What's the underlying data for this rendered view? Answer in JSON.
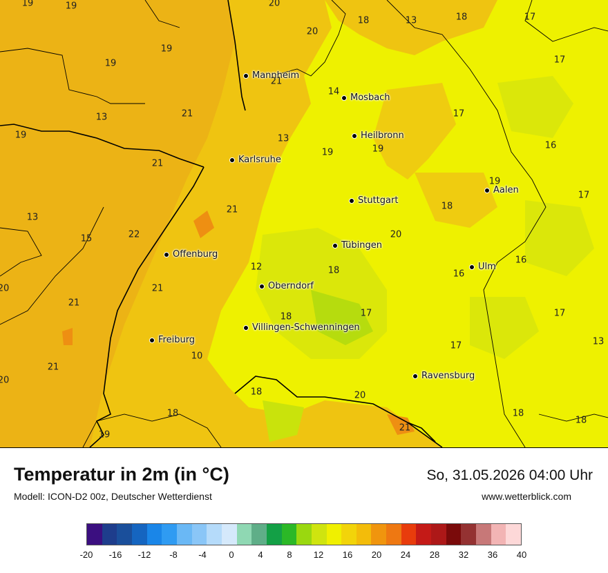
{
  "title": "Temperatur in 2m (in °C)",
  "model": "Modell: ICON-D2 00z, Deutscher Wetterdienst",
  "datetime": "So, 31.05.2026 04:00 Uhr",
  "website": "www.wetterblick.com",
  "cities": [
    {
      "name": "Mannheim",
      "id": "mannheim"
    },
    {
      "name": "Mosbach",
      "id": "mosbach"
    },
    {
      "name": "Heilbronn",
      "id": "heilbronn"
    },
    {
      "name": "Karlsruhe",
      "id": "karlsruhe"
    },
    {
      "name": "Stuttgart",
      "id": "stuttgart"
    },
    {
      "name": "Aalen",
      "id": "aalen"
    },
    {
      "name": "Tübingen",
      "id": "tuebingen"
    },
    {
      "name": "Offenburg",
      "id": "offenburg"
    },
    {
      "name": "Ulm",
      "id": "ulm"
    },
    {
      "name": "Oberndorf",
      "id": "oberndorf"
    },
    {
      "name": "Villingen-Schwenningen",
      "id": "villingen"
    },
    {
      "name": "Freiburg",
      "id": "freiburg"
    },
    {
      "name": "Ravensburg",
      "id": "ravensburg"
    }
  ],
  "values": [
    "19",
    "19",
    "20",
    "18",
    "13",
    "18",
    "17",
    "20",
    "19",
    "19",
    "17",
    "21",
    "14",
    "13",
    "21",
    "17",
    "19",
    "13",
    "19",
    "19",
    "16",
    "21",
    "19",
    "17",
    "21",
    "13",
    "15",
    "22",
    "18",
    "20",
    "12",
    "18",
    "16",
    "16",
    "20",
    "21",
    "17",
    "17",
    "21",
    "18",
    "17",
    "13",
    "10",
    "20",
    "21",
    "18",
    "20",
    "18",
    "18",
    "21",
    "18",
    "19"
  ],
  "legend": {
    "colors": [
      "#3b0f80",
      "#1e3d8c",
      "#1a4f9b",
      "#1565c0",
      "#1a86e8",
      "#2f9bf2",
      "#6ab8f5",
      "#8ac6f7",
      "#b5dbfa",
      "#d5e9fb",
      "#8fd8b3",
      "#5fae88",
      "#13a046",
      "#2bb827",
      "#9ad80f",
      "#cfe40f",
      "#f0f000",
      "#f2d40a",
      "#f3bc0a",
      "#f0950e",
      "#ee7812",
      "#e83c0c",
      "#c41a17",
      "#ad1818",
      "#7a0a0a",
      "#943232",
      "#c77878",
      "#f2b4b4",
      "#fdd8d8"
    ],
    "labels": [
      "-20",
      "-16",
      "-12",
      "-8",
      "-4",
      "0",
      "4",
      "8",
      "12",
      "16",
      "20",
      "24",
      "28",
      "32",
      "36",
      "40"
    ]
  },
  "colors": {
    "warm_orange": "#ecb315",
    "yellow": "#eef100",
    "green_yellow": "#c9e30c"
  }
}
